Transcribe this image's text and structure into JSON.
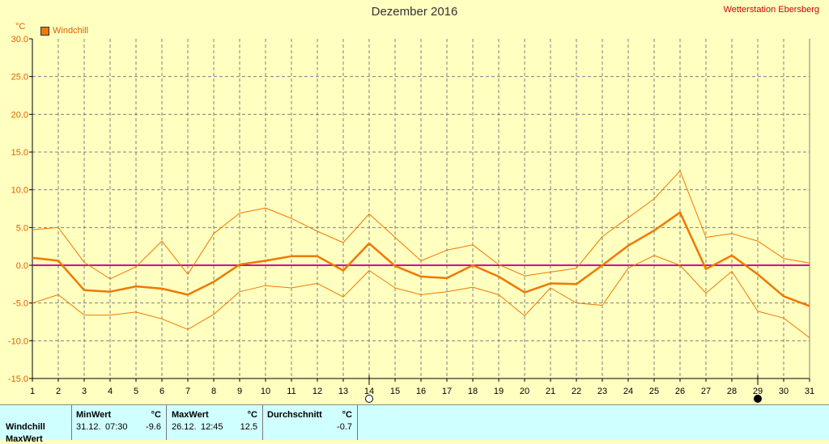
{
  "chart_data": {
    "type": "line",
    "title": "Dezember 2016",
    "station": "Wetterstation Ebersberg",
    "yunit": "°C",
    "ylim": [
      -15,
      30
    ],
    "yticks": [
      "30.0",
      "25.0",
      "20.0",
      "15.0",
      "10.0",
      "5.0",
      "0.0",
      "-5.0",
      "-10.0",
      "-15.0"
    ],
    "x": [
      1,
      2,
      3,
      4,
      5,
      6,
      7,
      8,
      9,
      10,
      11,
      12,
      13,
      14,
      15,
      16,
      17,
      18,
      19,
      20,
      21,
      22,
      23,
      24,
      25,
      26,
      27,
      28,
      29,
      30,
      31
    ],
    "grid": true,
    "legend_position": "top-left",
    "series": [
      {
        "name": "Windchill",
        "color": "#f07800",
        "values": [
          1.0,
          0.6,
          -3.3,
          -3.5,
          -2.8,
          -3.1,
          -3.9,
          -2.2,
          0.1,
          0.6,
          1.2,
          1.2,
          -0.7,
          2.9,
          -0.1,
          -1.5,
          -1.7,
          0.0,
          -1.5,
          -3.6,
          -2.4,
          -2.5,
          0.0,
          2.6,
          4.6,
          7.0,
          -0.5,
          1.3,
          -1.2,
          -4.1,
          -5.4
        ]
      },
      {
        "values": [
          4.7,
          5.0,
          0.4,
          -1.8,
          -0.2,
          3.2,
          -1.2,
          4.2,
          6.9,
          7.6,
          6.2,
          4.5,
          3.0,
          6.8,
          3.7,
          0.6,
          2.0,
          2.7,
          0.1,
          -1.4,
          -0.9,
          -0.4,
          3.8,
          6.3,
          8.8,
          12.5,
          3.7,
          4.2,
          3.2,
          0.9,
          0.3
        ],
        "color": "#f07800"
      },
      {
        "values": [
          -5.0,
          -3.9,
          -6.6,
          -6.6,
          -6.2,
          -7.1,
          -8.5,
          -6.5,
          -3.5,
          -2.7,
          -3.0,
          -2.4,
          -4.2,
          -0.7,
          -3.0,
          -3.9,
          -3.5,
          -2.9,
          -3.9,
          -6.7,
          -3.0,
          -5.0,
          -5.3,
          -0.4,
          1.3,
          0.0,
          -3.7,
          -0.8,
          -6.1,
          -7.0,
          -9.6
        ],
        "color": "#f07800"
      }
    ],
    "zero_line_color": "#d000a0",
    "markers": [
      {
        "day": 14,
        "symbol": "open-circle"
      },
      {
        "day": 29,
        "symbol": "filled-circle"
      }
    ]
  },
  "stats_table": {
    "row_label": "Windchill",
    "row2_label": "MaxWert",
    "min": {
      "header": "MinWert",
      "unit": "°C",
      "date": "31.12.",
      "time": "07:30",
      "value": "-9.6"
    },
    "max": {
      "header": "MaxWert",
      "unit": "°C",
      "date": "26.12.",
      "time": "12:45",
      "value": "12.5"
    },
    "avg": {
      "header": "Durchschnitt",
      "unit": "°C",
      "value": "-0.7"
    }
  }
}
